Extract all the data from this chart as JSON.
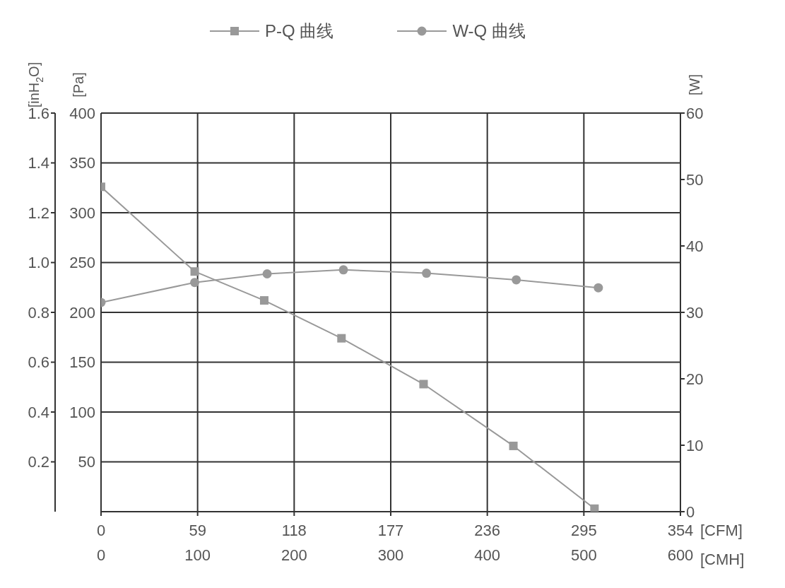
{
  "chart_data": {
    "type": "line",
    "xlabel": "[CMH]",
    "xlim": [
      0,
      600
    ],
    "xticks": [
      0,
      100,
      200,
      300,
      400,
      500,
      600
    ],
    "x2label": "[CFM]",
    "x2lim": [
      0,
      354
    ],
    "x2ticks": [
      0,
      59,
      118,
      177,
      236,
      295,
      354
    ],
    "ylabel": "[Pa]",
    "ylim": [
      0,
      400
    ],
    "yticks": [
      50,
      100,
      150,
      200,
      250,
      300,
      350,
      400
    ],
    "y3label": "[inH$_{2}$O]",
    "y3lim": [
      0,
      1.6
    ],
    "y3ticks": [
      0.2,
      0.4,
      0.6,
      0.8,
      {
        "value": 1,
        "label": "1.0"
      },
      1.2,
      1.4,
      1.6
    ],
    "y2label": "[W]",
    "y2lim": [
      0,
      60
    ],
    "y2ticks": [
      0,
      10,
      20,
      30,
      40,
      50,
      60
    ],
    "grid": true,
    "legend": "top",
    "line_style": "solid",
    "series": [
      {
        "name": "P-Q 曲线",
        "color": "#999999",
        "marker": "square",
        "x": [
          0,
          97,
          169,
          249,
          334,
          427,
          511
        ],
        "values": [
          326,
          241,
          212,
          174,
          128,
          66,
          3
        ]
      },
      {
        "name": "W-Q 曲线",
        "color": "#999999",
        "marker": "circle",
        "axis": "y2",
        "x": [
          0,
          97,
          172,
          251,
          337,
          430,
          515
        ],
        "values": [
          31.5,
          34.5,
          35.8,
          36.4,
          35.9,
          34.9,
          33.7
        ]
      }
    ]
  }
}
